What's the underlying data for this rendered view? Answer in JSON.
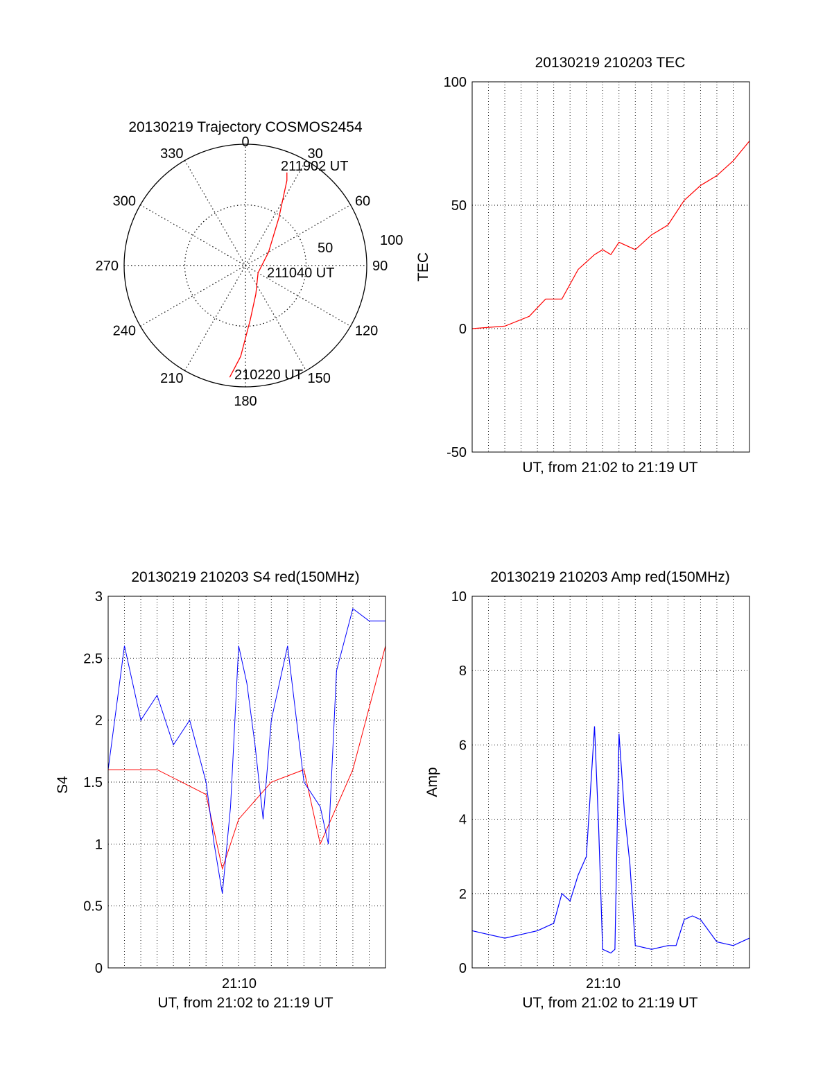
{
  "chart_data": [
    {
      "type": "polar-trajectory",
      "title": "20130219 Trajectory COSMOS2454",
      "angle_labels": [
        "0",
        "30",
        "60",
        "90",
        "120",
        "150",
        "180",
        "210",
        "240",
        "270",
        "300",
        "330"
      ],
      "radius_labels": [
        "50",
        "100"
      ],
      "rlim": [
        0,
        100
      ],
      "track_color": "#ff0000",
      "track": [
        {
          "az": 188,
          "r": 93
        },
        {
          "az": 183,
          "r": 75
        },
        {
          "az": 175,
          "r": 45
        },
        {
          "az": 160,
          "r": 25
        },
        {
          "az": 120,
          "r": 12
        },
        {
          "az": 60,
          "r": 22
        },
        {
          "az": 35,
          "r": 48
        },
        {
          "az": 26,
          "r": 78
        },
        {
          "az": 24,
          "r": 84
        }
      ],
      "annotations": [
        {
          "text": "211902 UT",
          "az": 24,
          "r": 84
        },
        {
          "text": "211040 UT",
          "az": 100,
          "r": 18
        },
        {
          "text": "210220 UT",
          "az": 188,
          "r": 93
        }
      ]
    },
    {
      "type": "line",
      "title": "20130219 210203 TEC",
      "xlabel": "UT, from 21:02 to 21:19 UT",
      "ylabel": "TEC",
      "xlim": [
        "21:02",
        "21:19"
      ],
      "ylim": [
        -50,
        100
      ],
      "yticks": [
        "-50",
        "0",
        "50",
        "100"
      ],
      "grid": true,
      "series": [
        {
          "color": "#ff0000",
          "x": [
            "21:02:00",
            "21:04:00",
            "21:05:30",
            "21:06:30",
            "21:07:30",
            "21:08:30",
            "21:09:30",
            "21:10:00",
            "21:10:30",
            "21:11:00",
            "21:12:00",
            "21:13:00",
            "21:14:00",
            "21:15:00",
            "21:16:00",
            "21:17:00",
            "21:18:00",
            "21:19:00"
          ],
          "y": [
            0,
            1,
            5,
            12,
            12,
            24,
            30,
            32,
            30,
            35,
            32,
            38,
            42,
            52,
            58,
            62,
            68,
            76
          ]
        }
      ]
    },
    {
      "type": "line",
      "title": "20130219 210203 S4 red(150MHz)",
      "xlabel": "UT, from 21:02 to 21:19 UT",
      "ylabel": "S4",
      "xlim": [
        "21:02",
        "21:19"
      ],
      "ylim": [
        0,
        3
      ],
      "yticks": [
        "0",
        "0.5",
        "1",
        "1.5",
        "2",
        "2.5",
        "3"
      ],
      "xticks": [
        "21:10"
      ],
      "grid": true,
      "series": [
        {
          "color": "#ff0000",
          "x": [
            "21:02:00",
            "21:05:00",
            "21:08:00",
            "21:09:00",
            "21:10:00",
            "21:12:00",
            "21:14:00",
            "21:15:00",
            "21:17:00",
            "21:19:00"
          ],
          "y": [
            1.6,
            1.6,
            1.4,
            0.8,
            1.2,
            1.5,
            1.6,
            1.0,
            1.6,
            2.6
          ]
        },
        {
          "color": "#0000ff",
          "x": [
            "21:02:00",
            "21:03:00",
            "21:04:00",
            "21:05:00",
            "21:06:00",
            "21:07:00",
            "21:08:00",
            "21:08:30",
            "21:09:00",
            "21:09:30",
            "21:10:00",
            "21:10:30",
            "21:11:00",
            "21:11:30",
            "21:12:00",
            "21:13:00",
            "21:14:00",
            "21:15:00",
            "21:15:30",
            "21:16:00",
            "21:17:00",
            "21:18:00",
            "21:19:00"
          ],
          "y": [
            1.6,
            2.6,
            2.0,
            2.2,
            1.8,
            2.0,
            1.5,
            1.0,
            0.6,
            1.3,
            2.6,
            2.3,
            1.8,
            1.2,
            2.0,
            2.6,
            1.5,
            1.3,
            1.0,
            2.4,
            2.9,
            2.8,
            2.8
          ]
        }
      ]
    },
    {
      "type": "line",
      "title": "20130219 210203 Amp red(150MHz)",
      "xlabel": "UT, from 21:02 to 21:19 UT",
      "ylabel": "Amp",
      "xlim": [
        "21:02",
        "21:19"
      ],
      "ylim": [
        0,
        10
      ],
      "yticks": [
        "0",
        "2",
        "4",
        "6",
        "8",
        "10"
      ],
      "xticks": [
        "21:10"
      ],
      "grid": true,
      "series": [
        {
          "color": "#0000ff",
          "x": [
            "21:02:00",
            "21:03:00",
            "21:04:00",
            "21:05:00",
            "21:06:00",
            "21:07:00",
            "21:07:30",
            "21:08:00",
            "21:08:30",
            "21:09:00",
            "21:09:30",
            "21:09:45",
            "21:10:00",
            "21:10:30",
            "21:10:45",
            "21:11:00",
            "21:11:20",
            "21:11:40",
            "21:12:00",
            "21:13:00",
            "21:14:00",
            "21:14:30",
            "21:15:00",
            "21:15:30",
            "21:16:00",
            "21:17:00",
            "21:18:00",
            "21:19:00"
          ],
          "y": [
            1.0,
            0.9,
            0.8,
            0.9,
            1.0,
            1.2,
            2.0,
            1.8,
            2.5,
            3.0,
            6.5,
            3.8,
            0.5,
            0.4,
            0.5,
            6.3,
            4.2,
            2.8,
            0.6,
            0.5,
            0.6,
            0.6,
            1.3,
            1.4,
            1.3,
            0.7,
            0.6,
            0.8
          ]
        }
      ]
    }
  ]
}
